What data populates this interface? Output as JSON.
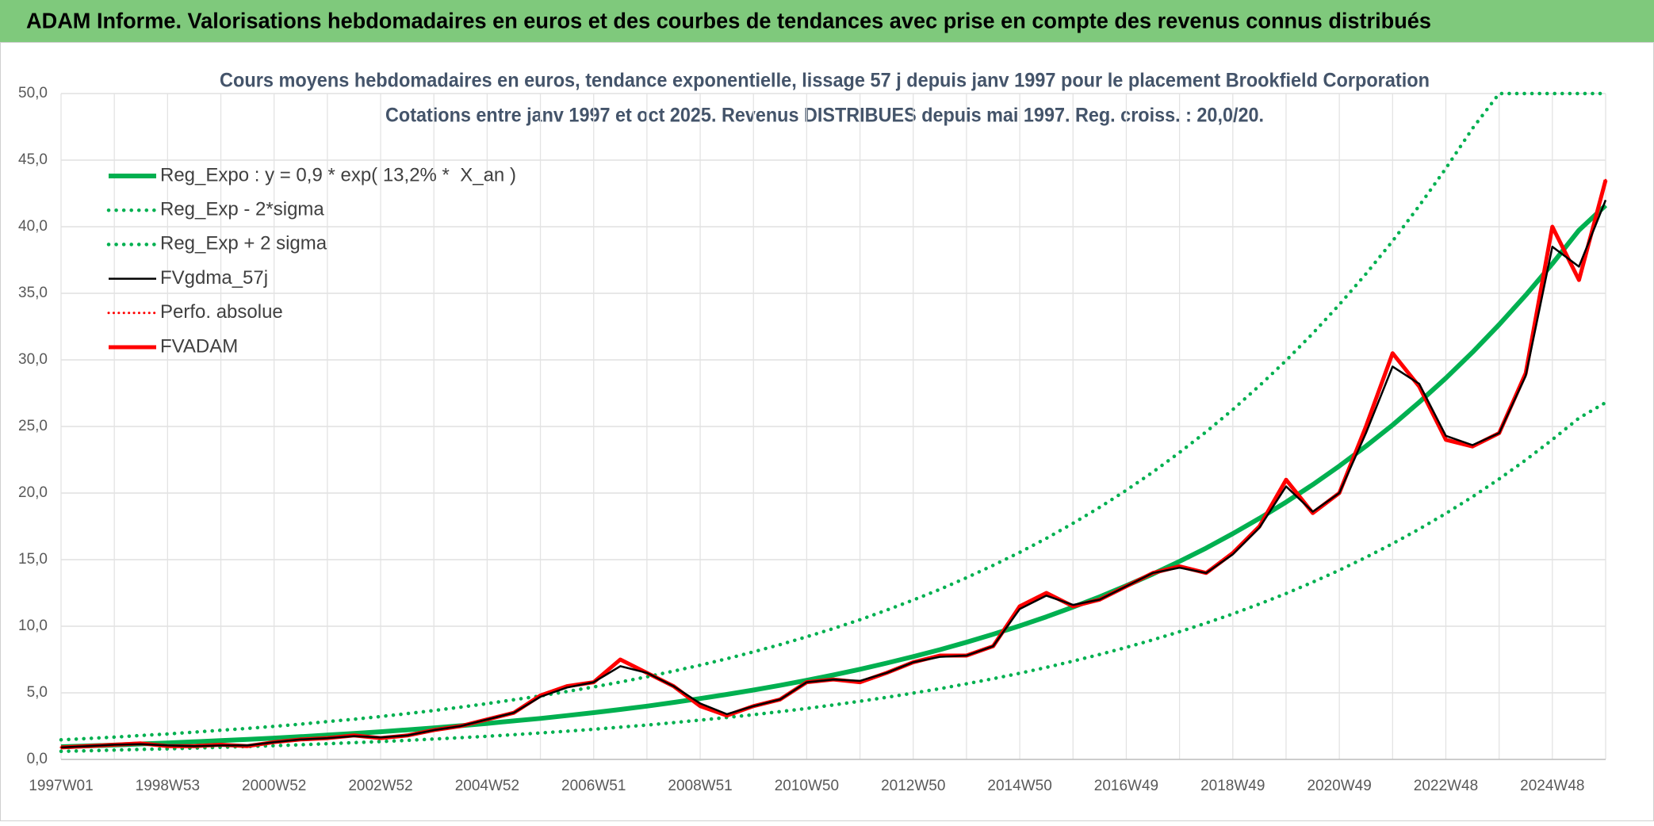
{
  "header": {
    "title": "ADAM Informe. Valorisations hebdomadaires en euros et des courbes de tendances avec prise en compte des revenus connus distribués"
  },
  "chart_data": {
    "type": "line",
    "title": "Cours moyens hebdomadaires en euros, tendance exponentielle, lissage 57 j depuis janv 1997 pour le placement Brookfield Corporation",
    "subtitle": "Cotations entre janv 1997 et oct 2025. Revenus DISTRIBUES depuis mai 1997. Reg. croiss. : 20,0/20.",
    "categories": [
      "1997W01",
      null,
      null,
      null,
      "1998W53",
      null,
      null,
      null,
      "2000W52",
      null,
      null,
      null,
      "2002W52",
      null,
      null,
      null,
      "2004W52",
      null,
      null,
      null,
      "2006W51",
      null,
      null,
      null,
      "2008W51",
      null,
      null,
      null,
      "2010W50",
      null,
      null,
      null,
      "2012W50",
      null,
      null,
      null,
      "2014W50",
      null,
      null,
      null,
      "2016W49",
      null,
      null,
      null,
      "2018W49",
      null,
      null,
      null,
      "2020W49",
      null,
      null,
      null,
      "2022W48",
      null,
      null,
      null,
      "2024W48",
      null,
      null
    ],
    "ylim": [
      0,
      50
    ],
    "yticks": [
      {
        "value": 0,
        "label": "0,0"
      },
      {
        "value": 5,
        "label": "5,0"
      },
      {
        "value": 10,
        "label": "10,0"
      },
      {
        "value": 15,
        "label": "15,0"
      },
      {
        "value": 20,
        "label": "20,0"
      },
      {
        "value": 25,
        "label": "25,0"
      },
      {
        "value": 30,
        "label": "30,0"
      },
      {
        "value": 35,
        "label": "35,0"
      },
      {
        "value": 40,
        "label": "40,0"
      },
      {
        "value": 45,
        "label": "45,0"
      },
      {
        "value": 50,
        "label": "50,0"
      }
    ],
    "grid": true,
    "legend": "top-left",
    "series": [
      {
        "name": "Reg_Expo : y = 0,9 * exp( 13,2% *  X_an )",
        "color": "#00b050",
        "style": "solid",
        "width": 6,
        "values": [
          0.95,
          1.01,
          1.08,
          1.16,
          1.23,
          1.32,
          1.41,
          1.5,
          1.6,
          1.71,
          1.83,
          1.95,
          2.08,
          2.22,
          2.37,
          2.53,
          2.7,
          2.89,
          3.08,
          3.29,
          3.51,
          3.75,
          4.0,
          4.28,
          4.57,
          4.88,
          5.21,
          5.56,
          5.94,
          6.34,
          6.77,
          7.23,
          7.72,
          8.24,
          8.8,
          9.4,
          10.03,
          10.71,
          11.44,
          12.21,
          13.04,
          13.92,
          14.87,
          15.87,
          16.95,
          18.1,
          19.32,
          20.63,
          22.03,
          23.52,
          25.11,
          26.82,
          28.63,
          30.57,
          32.65,
          34.86,
          37.22,
          39.74,
          41.6
        ]
      },
      {
        "name": "Reg_Exp - 2*sigma",
        "color": "#00b050",
        "style": "dotted",
        "width": 4.5,
        "values": [
          0.61,
          0.65,
          0.7,
          0.75,
          0.79,
          0.85,
          0.91,
          0.97,
          1.03,
          1.1,
          1.18,
          1.26,
          1.34,
          1.43,
          1.53,
          1.63,
          1.74,
          1.86,
          1.99,
          2.12,
          2.26,
          2.42,
          2.58,
          2.76,
          2.95,
          3.15,
          3.36,
          3.59,
          3.83,
          4.09,
          4.37,
          4.66,
          4.98,
          5.31,
          5.68,
          6.06,
          6.47,
          6.91,
          7.38,
          7.88,
          8.41,
          8.98,
          9.59,
          10.24,
          10.93,
          11.67,
          12.46,
          13.31,
          14.21,
          15.17,
          16.2,
          17.3,
          18.47,
          19.72,
          21.06,
          22.48,
          24.01,
          25.63,
          26.8
        ]
      },
      {
        "name": "Reg_Exp + 2 sigma",
        "color": "#00b050",
        "style": "dotted",
        "width": 4.5,
        "values": [
          1.47,
          1.57,
          1.67,
          1.8,
          1.91,
          2.05,
          2.19,
          2.33,
          2.48,
          2.65,
          2.84,
          3.02,
          3.22,
          3.44,
          3.67,
          3.92,
          4.19,
          4.48,
          4.77,
          5.1,
          5.44,
          5.81,
          6.2,
          6.63,
          7.08,
          7.56,
          8.08,
          8.62,
          9.21,
          9.83,
          10.49,
          11.21,
          11.97,
          12.77,
          13.64,
          14.57,
          15.55,
          16.6,
          17.73,
          18.93,
          20.21,
          21.58,
          23.05,
          24.6,
          26.27,
          28.06,
          29.95,
          31.98,
          34.15,
          36.46,
          38.92,
          41.57,
          44.38,
          47.38,
          50,
          50,
          50,
          50,
          50
        ]
      },
      {
        "name": "FVgdma_57j",
        "color": "#000000",
        "style": "solid",
        "width": 2.5,
        "on_top": true,
        "values": [
          0.9,
          1.0,
          1.1,
          1.15,
          1.05,
          1.0,
          1.05,
          1.05,
          1.3,
          1.5,
          1.6,
          1.75,
          1.65,
          1.8,
          2.2,
          2.5,
          3.0,
          3.5,
          4.7,
          5.4,
          5.8,
          7.0,
          6.5,
          5.5,
          4.2,
          3.4,
          4.0,
          4.5,
          5.8,
          6.0,
          5.9,
          6.5,
          7.3,
          7.7,
          7.8,
          8.5,
          11.3,
          12.3,
          11.6,
          12.0,
          13.0,
          14.0,
          14.4,
          14.0,
          15.4,
          17.4,
          20.5,
          18.6,
          20.0,
          24.5,
          29.5,
          28.2,
          24.3,
          23.6,
          24.5,
          28.8,
          38.5,
          37.0,
          42.0
        ]
      },
      {
        "name": "Perfo. absolue",
        "color": "#ff0000",
        "style": "dotted",
        "width": 3,
        "values": [
          0.9,
          1.0,
          1.1,
          1.2,
          1.0,
          1.0,
          1.1,
          1.0,
          1.3,
          1.5,
          1.6,
          1.8,
          1.6,
          1.8,
          2.2,
          2.5,
          3.0,
          3.5,
          4.8,
          5.5,
          5.8,
          7.5,
          6.5,
          5.5,
          4.0,
          3.3,
          4.0,
          4.5,
          5.8,
          6.0,
          5.8,
          6.5,
          7.3,
          7.8,
          7.8,
          8.5,
          11.5,
          12.5,
          11.5,
          12.0,
          13.0,
          14.0,
          14.5,
          14.0,
          15.5,
          17.5,
          21.0,
          18.5,
          20.0,
          25.0,
          30.5,
          28.0,
          24.0,
          23.5,
          24.5,
          29.0,
          40.0,
          36.0,
          43.5
        ]
      },
      {
        "name": "FVADAM",
        "color": "#ff0000",
        "style": "solid",
        "width": 5,
        "values": [
          0.9,
          1.0,
          1.1,
          1.2,
          1.0,
          1.0,
          1.1,
          1.0,
          1.3,
          1.5,
          1.6,
          1.8,
          1.6,
          1.8,
          2.2,
          2.5,
          3.0,
          3.5,
          4.8,
          5.5,
          5.8,
          7.5,
          6.5,
          5.5,
          4.0,
          3.3,
          4.0,
          4.5,
          5.8,
          6.0,
          5.8,
          6.5,
          7.3,
          7.8,
          7.8,
          8.5,
          11.5,
          12.5,
          11.5,
          12.0,
          13.0,
          14.0,
          14.5,
          14.0,
          15.5,
          17.5,
          21.0,
          18.5,
          20.0,
          25.0,
          30.5,
          28.0,
          24.0,
          23.5,
          24.5,
          29.0,
          40.0,
          36.0,
          43.5
        ]
      }
    ]
  }
}
